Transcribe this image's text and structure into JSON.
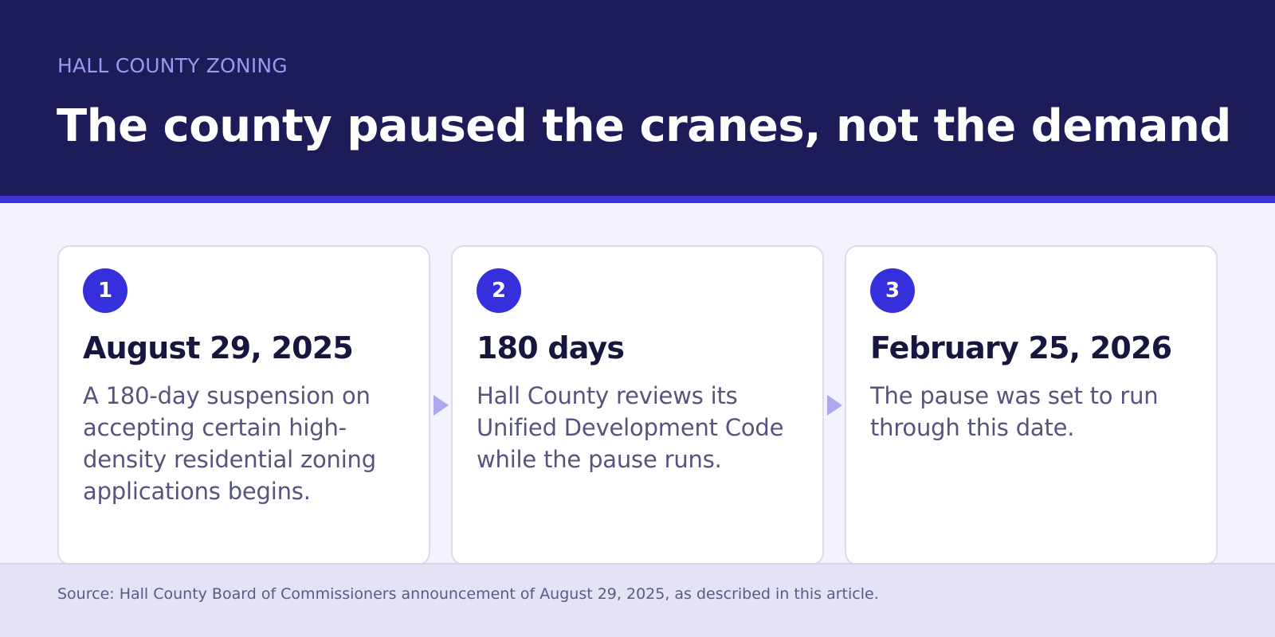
{
  "header": {
    "kicker": "HALL COUNTY ZONING",
    "title": "The county paused the cranes, not the demand"
  },
  "steps": [
    {
      "number": "1",
      "title": "August 29, 2025",
      "body": "A 180-day suspension on accepting certain high-density residential zoning applications begins."
    },
    {
      "number": "2",
      "title": "180 days",
      "body": "Hall County reviews its Unified Development Code while the pause runs."
    },
    {
      "number": "3",
      "title": "February 25, 2026",
      "body": "The pause was set to run through this date."
    }
  ],
  "footer": {
    "source": "Source: Hall County Board of Commissioners announcement of August 29, 2025, as described in this article."
  },
  "colors": {
    "header_bg": "#1e1c58",
    "accent": "#3630dc",
    "kicker": "#9b97ee",
    "page_bg": "#f3f3fd",
    "footer_bg": "#e4e3f6",
    "arrow": "#aba8ee"
  },
  "icons": [
    "arrow-right-icon",
    "arrow-right-icon"
  ]
}
